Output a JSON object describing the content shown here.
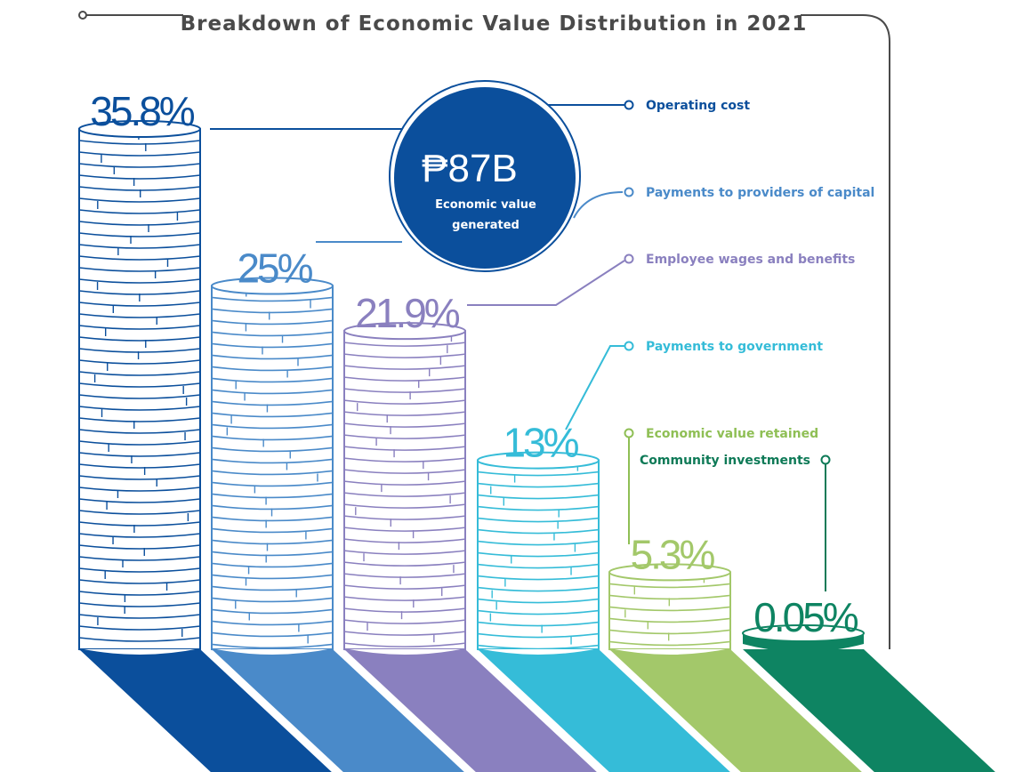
{
  "title": "Breakdown of Economic Value Distribution in 2021",
  "center": {
    "value": "₱87B",
    "label_line1": "Economic value",
    "label_line2": "generated"
  },
  "chart_data": {
    "type": "bar",
    "title": "Breakdown of Economic Value Distribution in 2021",
    "categories": [
      "Operating cost",
      "Payments to providers of capital",
      "Employee wages and benefits",
      "Payments to government",
      "Economic value retained",
      "Community investments"
    ],
    "values": [
      35.8,
      25,
      21.9,
      13,
      5.3,
      0.05
    ],
    "value_labels": [
      "35.8%",
      "25%",
      "21.9%",
      "13%",
      "5.3%",
      "0.05%"
    ],
    "colors": [
      "#0b4f9c",
      "#4a8ac9",
      "#8a80bf",
      "#35bcd8",
      "#a3c86a",
      "#0e8462"
    ],
    "legend_colors": [
      "#0b4f9c",
      "#4a8ac9",
      "#8a80bf",
      "#35bcd8",
      "#8fbf55",
      "#0e7a57"
    ],
    "xlabel": "",
    "ylabel": ""
  }
}
